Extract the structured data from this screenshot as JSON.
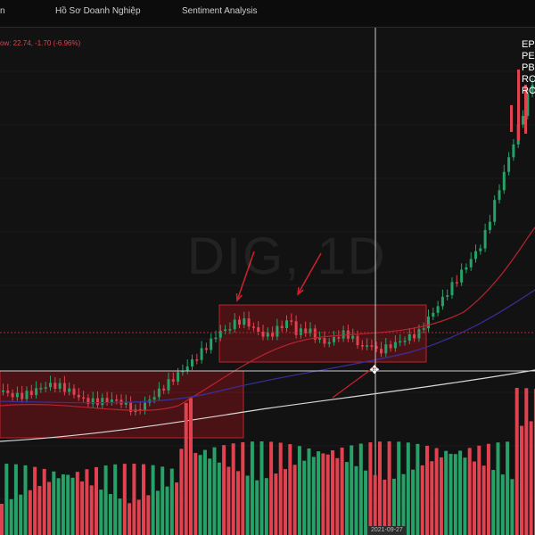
{
  "tabs": [
    {
      "label": "n"
    },
    {
      "label": "Hồ Sơ Doanh Nghiệp"
    },
    {
      "label": "Sentiment Analysis"
    }
  ],
  "legend": {
    "ohlc_text": "ow: 22.74, -1.70 (-6.96%)",
    "symbol_watermark": "DIG, 1D"
  },
  "ratios": [
    "EPS",
    "PE",
    "PB",
    "ROE",
    "ROA"
  ],
  "crosshair": {
    "date_label": "2021-09-27"
  },
  "colors": {
    "up": "#26a269",
    "down": "#e0424f",
    "ma_fast": "#b8232f",
    "ma_mid": "#3a2f9c",
    "ma_slow": "#d9d9d9",
    "box_fill": "rgba(180,20,30,0.35)",
    "box_stroke": "#c0212e"
  },
  "icons": {
    "cursor": "move-cursor-icon"
  }
}
